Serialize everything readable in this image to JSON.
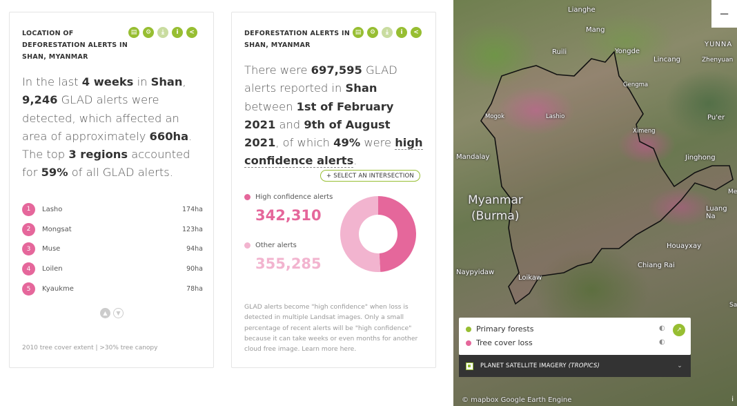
{
  "card1": {
    "title": "LOCATION OF DEFORESTATION ALERTS IN SHAN, MYANMAR",
    "icons": [
      "map-icon",
      "gear-icon",
      "download-icon",
      "info-icon",
      "share-icon"
    ],
    "sentence": {
      "t1": "In the last ",
      "b1": "4 weeks",
      "t2": " in ",
      "b2": "Shan",
      "t3": ", ",
      "b3": "9,246",
      "t4": " GLAD alerts were detected, which affected an area of approximately ",
      "b4": "660ha",
      "t5": ". The top ",
      "b5": "3 regions",
      "t6": " accounted for ",
      "b6": "59%",
      "t7": " of all GLAD alerts."
    },
    "regions": [
      {
        "rank": "1",
        "name": "Lasho",
        "value": "174ha"
      },
      {
        "rank": "2",
        "name": "Mongsat",
        "value": "123ha"
      },
      {
        "rank": "3",
        "name": "Muse",
        "value": "94ha"
      },
      {
        "rank": "4",
        "name": "Loilen",
        "value": "90ha"
      },
      {
        "rank": "5",
        "name": "Kyaukme",
        "value": "78ha"
      }
    ],
    "footer": "2010 tree cover extent | >30% tree canopy"
  },
  "card2": {
    "title": "DEFORESTATION ALERTS IN SHAN, MYANMAR",
    "sentence": {
      "t1": "There were ",
      "b1": "697,595",
      "t2": " GLAD alerts reported in ",
      "b2": "Shan",
      "t3": " between ",
      "b3": "1st of February 2021",
      "t4": " and ",
      "b4": "9th of August 2021",
      "t5": ", of which ",
      "b5": "49%",
      "t6": " were ",
      "b6": "high confidence alerts",
      "t7": "."
    },
    "select_label": "+ SELECT AN INTERSECTION",
    "legend": [
      {
        "label": "High confidence alerts",
        "value": "342,310",
        "color": "#e5679b"
      },
      {
        "label": "Other alerts",
        "value": "355,285",
        "color": "#f2b4cf"
      }
    ],
    "footer": "GLAD alerts become \"high confidence\" when loss is detected in multiple Landsat images. Only a small percentage of recent alerts will be \"high confidence\" because it can take weeks or even months for another cloud free image. Learn more here."
  },
  "chart_data": {
    "type": "pie",
    "categories": [
      "High confidence alerts",
      "Other alerts"
    ],
    "values": [
      342310,
      355285
    ],
    "colors": [
      "#e5679b",
      "#f2b4cf"
    ]
  },
  "map": {
    "zoom_out": "−",
    "places": [
      "Lianghe",
      "Mang",
      "Ruili",
      "Yongde",
      "Lincang",
      "Zhenyuan",
      "YUNNA",
      "Gengma",
      "Mogok",
      "Lashio",
      "Ximeng",
      "Pu'er",
      "Mandalay",
      "Jinghong",
      "Me",
      "Myanmar",
      "(Burma)",
      "Luang Na",
      "Houayxay",
      "Chiang Rai",
      "Naypyidaw",
      "Loikaw",
      "Sa"
    ],
    "layers": [
      {
        "label": "Primary forests",
        "color": "#97be32"
      },
      {
        "label": "Tree cover loss",
        "color": "#e5679b"
      }
    ],
    "basemap": "PLANET SATELLITE IMAGERY",
    "basemap_sub": "(TROPICS)",
    "attribution": "© mapbox  Google Earth Engine",
    "info": "i"
  }
}
